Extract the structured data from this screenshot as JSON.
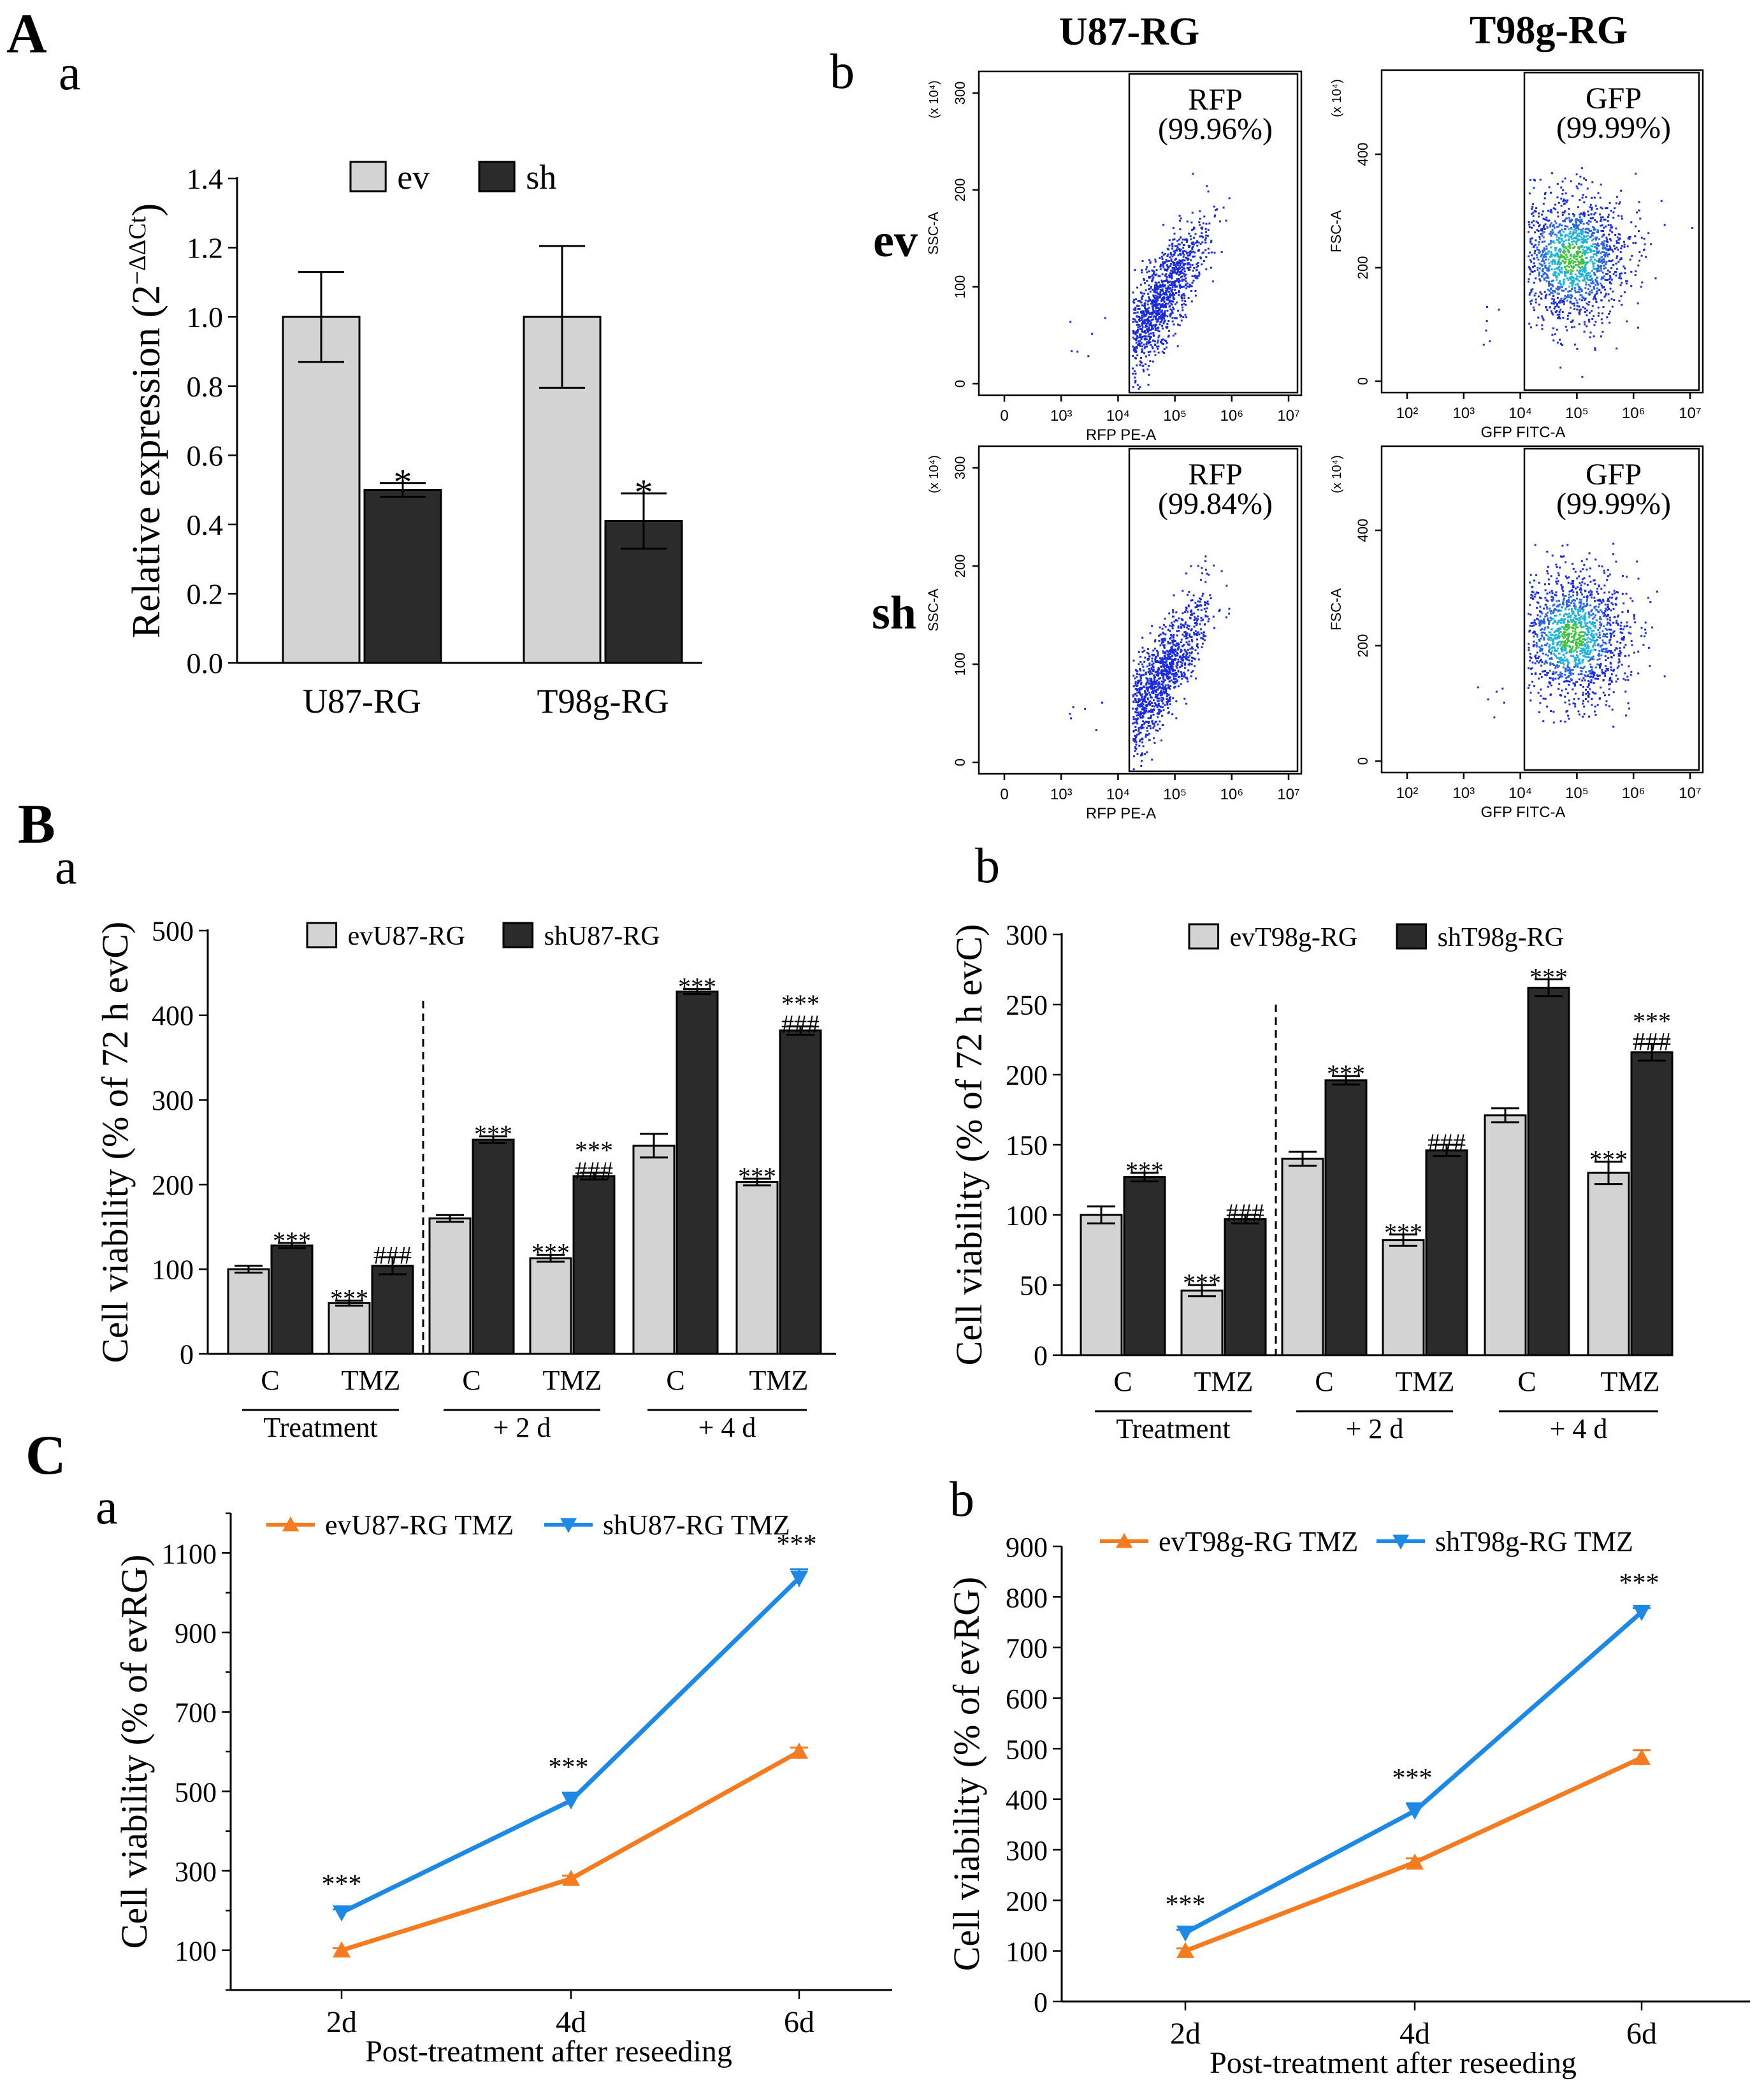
{
  "panel_letters": {
    "A": "A",
    "B": "B",
    "C": "C"
  },
  "sub_labels": {
    "Aa": "a",
    "Ab": "b",
    "Ba": "a",
    "Bb": "b",
    "Ca": "a",
    "Cb": "b"
  },
  "colors": {
    "light_bar": "#d3d3d3",
    "dark_bar": "#2b2b2b",
    "ev_line": "#f47b20",
    "sh_line": "#1e88e5",
    "sig_blue": "#1e88e5",
    "dot_blue": "#1a2bd9"
  },
  "flow": {
    "col_titles": [
      "U87-RG",
      "T98g-RG"
    ],
    "row_labels": [
      "ev",
      "sh"
    ],
    "exp_label": "(x 10⁴)",
    "plots": [
      {
        "gate": "RFP",
        "pct": "(99.96%)",
        "ylabel": "SSC-A",
        "xlabel": "RFP PE-A",
        "yticks": [
          "0",
          "100",
          "200",
          "300"
        ],
        "xticks": [
          "0",
          "10³",
          "10⁴",
          "10⁵",
          "10⁶",
          "10⁷"
        ],
        "density": "blue"
      },
      {
        "gate": "GFP",
        "pct": "(99.99%)",
        "ylabel": "FSC-A",
        "xlabel": "GFP FITC-A",
        "yticks": [
          "0",
          "200",
          "400"
        ],
        "xticks": [
          "10²",
          "10³",
          "10⁴",
          "10⁵",
          "10⁶",
          "10⁷"
        ],
        "density": "heat"
      },
      {
        "gate": "RFP",
        "pct": "(99.84%)",
        "ylabel": "SSC-A",
        "xlabel": "RFP PE-A",
        "yticks": [
          "0",
          "100",
          "200",
          "300"
        ],
        "xticks": [
          "0",
          "10³",
          "10⁴",
          "10⁵",
          "10⁶",
          "10⁷"
        ],
        "density": "blue"
      },
      {
        "gate": "GFP",
        "pct": "(99.99%)",
        "ylabel": "FSC-A",
        "xlabel": "GFP FITC-A",
        "yticks": [
          "0",
          "200",
          "400"
        ],
        "xticks": [
          "10²",
          "10³",
          "10⁴",
          "10⁵",
          "10⁶",
          "10⁷"
        ],
        "density": "heat"
      }
    ]
  },
  "chart_data": [
    {
      "id": "Aa",
      "type": "bar",
      "ylabel": "Relative expression (2^-ΔΔCt)",
      "ylabel_main": "Relative expression (2",
      "ylabel_exp": "−ΔΔCt",
      "ylabel_close": ")",
      "ylim": [
        0,
        1.4
      ],
      "yticks": [
        "0.0",
        "0.2",
        "0.4",
        "0.6",
        "0.8",
        "1.0",
        "1.2",
        "1.4"
      ],
      "categories": [
        "U87-RG",
        "T98g-RG"
      ],
      "legend": [
        "ev",
        "sh"
      ],
      "series": [
        {
          "name": "ev",
          "values": [
            1.0,
            1.0
          ],
          "errors": [
            0.13,
            0.205
          ],
          "labels": [
            "",
            ""
          ]
        },
        {
          "name": "sh",
          "values": [
            0.5,
            0.41
          ],
          "errors": [
            0.02,
            0.08
          ],
          "labels": [
            "*",
            "*"
          ]
        }
      ]
    },
    {
      "id": "Ba",
      "type": "bar",
      "ylabel": "Cell viability (% of 72 h evC)",
      "ylim": [
        0,
        500
      ],
      "yticks": [
        "0",
        "100",
        "200",
        "300",
        "400",
        "500"
      ],
      "categories": [
        "C",
        "TMZ",
        "C",
        "TMZ",
        "C",
        "TMZ"
      ],
      "groups": [
        "Treatment",
        "+ 2 d",
        "+ 4 d"
      ],
      "legend": [
        "evU87-RG",
        "shU87-RG"
      ],
      "series": [
        {
          "name": "evU87-RG",
          "values": [
            100,
            60,
            160,
            113,
            246,
            203
          ],
          "errors": [
            4,
            3,
            4,
            4,
            14,
            4
          ],
          "labels": [
            "",
            "***",
            "",
            "***",
            "",
            "***"
          ]
        },
        {
          "name": "shU87-RG",
          "values": [
            128,
            104,
            253,
            210,
            428,
            382
          ],
          "errors": [
            3,
            10,
            4,
            4,
            3,
            5
          ],
          "labels": [
            "***",
            "###",
            "***",
            "***\n###",
            "***",
            "***\n###"
          ]
        }
      ]
    },
    {
      "id": "Bb",
      "type": "bar",
      "ylabel": "Cell viability (% of 72 h evC)",
      "ylim": [
        0,
        300
      ],
      "yticks": [
        "0",
        "50",
        "100",
        "150",
        "200",
        "250",
        "300"
      ],
      "categories": [
        "C",
        "TMZ",
        "C",
        "TMZ",
        "C",
        "TMZ"
      ],
      "groups": [
        "Treatment",
        "+ 2 d",
        "+ 4 d"
      ],
      "legend": [
        "evT98g-RG",
        "shT98g-RG"
      ],
      "series": [
        {
          "name": "evT98g-RG",
          "values": [
            100,
            46,
            140,
            82,
            171,
            130
          ],
          "errors": [
            6,
            4,
            5,
            4,
            5,
            8
          ],
          "labels": [
            "",
            "***",
            "",
            "***",
            "",
            "***"
          ]
        },
        {
          "name": "shT98g-RG",
          "values": [
            127,
            97,
            196,
            146,
            262,
            216
          ],
          "errors": [
            3,
            3,
            3,
            4,
            6,
            6
          ],
          "labels": [
            "***",
            "###",
            "***",
            "###",
            "***",
            "***\n###"
          ]
        }
      ]
    },
    {
      "id": "Ca",
      "type": "line",
      "ylabel": "Cell viability (% of evRG)",
      "xlabel": "Post-treatment after reseeding",
      "ylim": [
        0,
        1200
      ],
      "yticks": [
        "100",
        "300",
        "500",
        "700",
        "900",
        "1100"
      ],
      "x": [
        "2d",
        "4d",
        "6d"
      ],
      "legend": [
        "evU87-RG TMZ",
        "shU87-RG TMZ"
      ],
      "series": [
        {
          "name": "evU87-RG TMZ",
          "values": [
            100,
            280,
            600
          ],
          "errors": [
            5,
            8,
            10
          ],
          "marker": "up"
        },
        {
          "name": "shU87-RG TMZ",
          "values": [
            195,
            477,
            1037
          ],
          "errors": [
            8,
            20,
            22
          ],
          "marker": "down",
          "labels": [
            "***",
            "***",
            "***"
          ]
        }
      ]
    },
    {
      "id": "Cb",
      "type": "line",
      "ylabel": "Cell viability (% of evRG)",
      "xlabel": "Post-treatment after reseeding",
      "ylim": [
        0,
        900
      ],
      "yticks": [
        "0",
        "100",
        "200",
        "300",
        "400",
        "500",
        "600",
        "700",
        "800",
        "900"
      ],
      "x": [
        "2d",
        "4d",
        "6d"
      ],
      "legend": [
        "evT98g-RG TMZ",
        "shT98g-RG TMZ"
      ],
      "series": [
        {
          "name": "evT98g-RG TMZ",
          "values": [
            100,
            275,
            482
          ],
          "errors": [
            5,
            8,
            15
          ],
          "marker": "up"
        },
        {
          "name": "shT98g-RG TMZ",
          "values": [
            136,
            377,
            770
          ],
          "errors": [
            6,
            15,
            8
          ],
          "marker": "down",
          "labels": [
            "***",
            "***",
            "***"
          ]
        }
      ]
    }
  ]
}
